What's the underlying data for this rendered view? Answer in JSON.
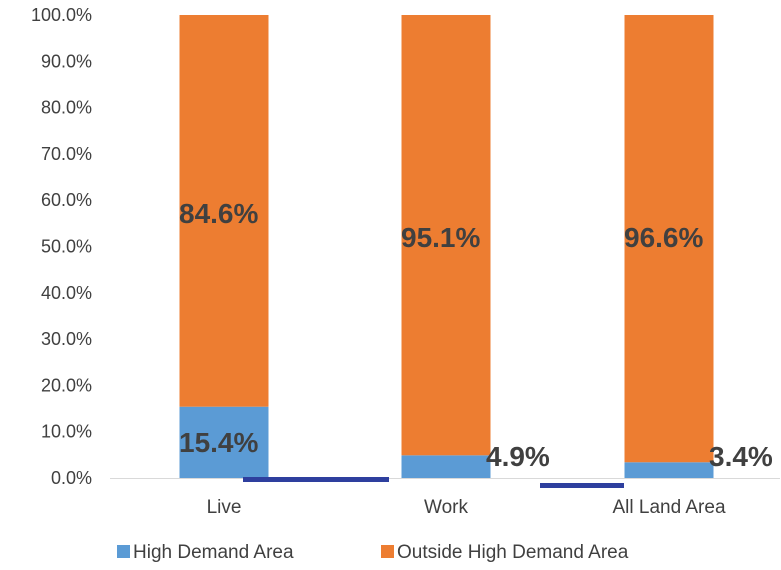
{
  "chart_data": {
    "type": "bar",
    "stacked": true,
    "categories": [
      "Live",
      "Work",
      "All Land Area"
    ],
    "series": [
      {
        "name": "High Demand Area",
        "values": [
          15.4,
          4.9,
          3.4
        ],
        "labels": [
          "15.4%",
          "4.9%",
          "3.4%"
        ],
        "color": "#5b9bd5"
      },
      {
        "name": "Outside High Demand Area",
        "values": [
          84.6,
          95.1,
          96.6
        ],
        "labels": [
          "84.6%",
          "95.1%",
          "96.6%"
        ],
        "color": "#ed7d31"
      }
    ],
    "title": "",
    "xlabel": "",
    "ylabel": "",
    "ylim": [
      0,
      100
    ],
    "yticks": [
      "0.0%",
      "10.0%",
      "20.0%",
      "30.0%",
      "40.0%",
      "50.0%",
      "60.0%",
      "70.0%",
      "80.0%",
      "90.0%",
      "100.0%"
    ],
    "grid": false,
    "legend_position": "bottom",
    "accent_line_color": "#2e3f9e"
  }
}
